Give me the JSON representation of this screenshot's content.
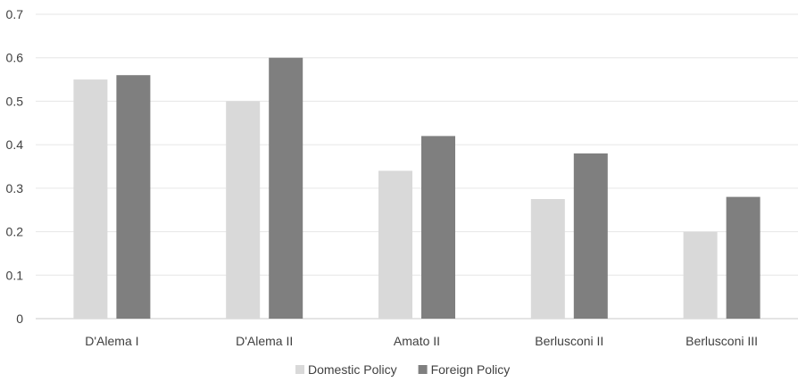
{
  "chart_data": {
    "type": "bar",
    "categories": [
      "D'Alema I",
      "D'Alema II",
      "Amato II",
      "Berlusconi II",
      "Berlusconi III"
    ],
    "series": [
      {
        "name": "Domestic Policy",
        "values": [
          0.55,
          0.5,
          0.34,
          0.275,
          0.2
        ],
        "color": "#d9d9d9"
      },
      {
        "name": "Foreign Policy",
        "values": [
          0.56,
          0.6,
          0.42,
          0.38,
          0.28
        ],
        "color": "#7f7f7f"
      }
    ],
    "ylim": [
      0,
      0.7
    ],
    "yticks": [
      "0",
      "0.1",
      "0.2",
      "0.3",
      "0.4",
      "0.5",
      "0.6",
      "0.7"
    ],
    "grid": true,
    "gridline_color": "#e6e6e6",
    "legend_position": "bottom",
    "title": "",
    "xlabel": "",
    "ylabel": ""
  }
}
